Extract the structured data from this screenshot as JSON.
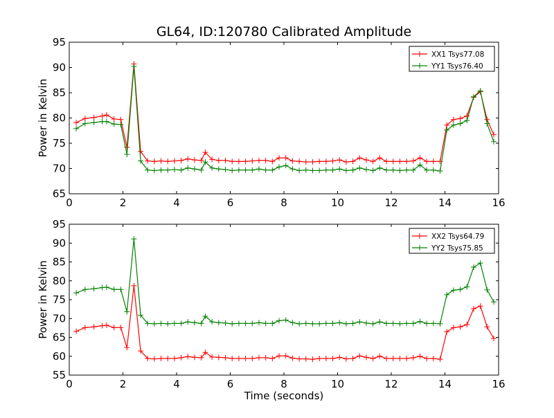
{
  "title": "GL64, ID:120780 Calibrated Amplitude",
  "chart_data": [
    {
      "type": "line",
      "ylabel": "Power in Kelvin",
      "xlabel": "",
      "xlim": [
        0,
        16
      ],
      "ylim": [
        65,
        95
      ],
      "xticks": [
        0,
        2,
        4,
        6,
        8,
        10,
        12,
        14,
        16
      ],
      "yticks": [
        65,
        70,
        75,
        80,
        85,
        90,
        95
      ],
      "legend_position": "top-right",
      "x": [
        0.26,
        0.59,
        0.92,
        1.23,
        1.39,
        1.67,
        1.92,
        2.15,
        2.41,
        2.66,
        2.92,
        3.17,
        3.42,
        3.67,
        3.92,
        4.17,
        4.42,
        4.67,
        4.92,
        5.07,
        5.32,
        5.57,
        5.82,
        6.07,
        6.32,
        6.57,
        6.82,
        7.07,
        7.32,
        7.57,
        7.82,
        8.07,
        8.32,
        8.57,
        8.82,
        9.07,
        9.32,
        9.57,
        9.82,
        10.07,
        10.32,
        10.57,
        10.82,
        11.07,
        11.32,
        11.57,
        11.82,
        12.07,
        12.32,
        12.57,
        12.82,
        13.07,
        13.32,
        13.57,
        13.82,
        14.07,
        14.32,
        14.57,
        14.82,
        15.07,
        15.32,
        15.57,
        15.82
      ],
      "series": [
        {
          "name": "XX1 Tsys77.08",
          "color": "#ff0000",
          "values": [
            79.1,
            79.9,
            80.1,
            80.4,
            80.6,
            79.8,
            79.7,
            74.2,
            90.7,
            73.4,
            71.5,
            71.4,
            71.5,
            71.4,
            71.5,
            71.6,
            71.9,
            71.7,
            71.6,
            73.2,
            71.8,
            71.6,
            71.6,
            71.4,
            71.4,
            71.4,
            71.5,
            71.6,
            71.6,
            71.4,
            72.1,
            72.1,
            71.5,
            71.4,
            71.3,
            71.3,
            71.4,
            71.4,
            71.5,
            71.7,
            71.3,
            71.4,
            72.1,
            71.7,
            71.4,
            72.1,
            71.4,
            71.4,
            71.4,
            71.4,
            71.5,
            72.1,
            71.4,
            71.4,
            71.4,
            78.6,
            79.7,
            79.9,
            80.4,
            84.1,
            85.2,
            79.7,
            76.7
          ]
        },
        {
          "name": "YY1 Tsys76.40",
          "color": "#008000",
          "values": [
            77.9,
            78.9,
            79.1,
            79.3,
            79.3,
            78.8,
            78.7,
            72.8,
            90.2,
            71.5,
            69.7,
            69.6,
            69.7,
            69.7,
            69.8,
            69.7,
            70.1,
            69.9,
            69.7,
            71.3,
            70.1,
            69.9,
            69.8,
            69.6,
            69.7,
            69.7,
            69.7,
            69.9,
            69.7,
            69.7,
            70.3,
            70.6,
            69.9,
            69.6,
            69.7,
            69.6,
            69.6,
            69.7,
            69.7,
            69.9,
            69.6,
            69.7,
            70.1,
            69.8,
            69.6,
            70.1,
            69.7,
            69.7,
            69.6,
            69.7,
            69.7,
            70.7,
            69.7,
            69.7,
            69.5,
            77.6,
            78.6,
            78.9,
            79.5,
            84.2,
            85.4,
            78.9,
            75.3
          ]
        }
      ]
    },
    {
      "type": "line",
      "ylabel": "Power in Kelvin",
      "xlabel": "Time (seconds)",
      "xlim": [
        0,
        16
      ],
      "ylim": [
        55,
        95
      ],
      "xticks": [
        0,
        2,
        4,
        6,
        8,
        10,
        12,
        14,
        16
      ],
      "yticks": [
        55,
        60,
        65,
        70,
        75,
        80,
        85,
        90,
        95
      ],
      "legend_position": "top-right",
      "x": [
        0.26,
        0.59,
        0.92,
        1.23,
        1.39,
        1.67,
        1.92,
        2.15,
        2.41,
        2.66,
        2.92,
        3.17,
        3.42,
        3.67,
        3.92,
        4.17,
        4.42,
        4.67,
        4.92,
        5.07,
        5.32,
        5.57,
        5.82,
        6.07,
        6.32,
        6.57,
        6.82,
        7.07,
        7.32,
        7.57,
        7.82,
        8.07,
        8.32,
        8.57,
        8.82,
        9.07,
        9.32,
        9.57,
        9.82,
        10.07,
        10.32,
        10.57,
        10.82,
        11.07,
        11.32,
        11.57,
        11.82,
        12.07,
        12.32,
        12.57,
        12.82,
        13.07,
        13.32,
        13.57,
        13.82,
        14.07,
        14.32,
        14.57,
        14.82,
        15.07,
        15.32,
        15.57,
        15.82
      ],
      "series": [
        {
          "name": "XX2 Tsys64.79",
          "color": "#ff0000",
          "values": [
            66.6,
            67.6,
            67.8,
            68.1,
            68.2,
            67.6,
            67.6,
            62.3,
            78.7,
            61.4,
            59.4,
            59.3,
            59.4,
            59.4,
            59.4,
            59.6,
            59.9,
            59.7,
            59.6,
            61.0,
            59.8,
            59.7,
            59.6,
            59.4,
            59.4,
            59.4,
            59.4,
            59.6,
            59.6,
            59.4,
            60.1,
            60.1,
            59.5,
            59.3,
            59.3,
            59.2,
            59.4,
            59.4,
            59.4,
            59.7,
            59.3,
            59.4,
            60.1,
            59.7,
            59.4,
            60.0,
            59.4,
            59.4,
            59.4,
            59.4,
            59.6,
            60.0,
            59.4,
            59.4,
            59.2,
            66.5,
            67.6,
            67.8,
            68.4,
            72.6,
            73.3,
            67.8,
            64.7
          ]
        },
        {
          "name": "YY2 Tsys75.85",
          "color": "#008000",
          "values": [
            76.8,
            77.7,
            77.9,
            78.2,
            78.3,
            77.7,
            77.7,
            71.8,
            91.1,
            70.9,
            68.7,
            68.6,
            68.7,
            68.6,
            68.7,
            68.7,
            69.1,
            68.9,
            68.7,
            70.6,
            69.1,
            68.9,
            68.8,
            68.6,
            68.7,
            68.7,
            68.7,
            68.9,
            68.7,
            68.7,
            69.4,
            69.6,
            68.9,
            68.6,
            68.7,
            68.6,
            68.6,
            68.7,
            68.7,
            68.9,
            68.6,
            68.7,
            69.1,
            68.8,
            68.6,
            69.1,
            68.7,
            68.7,
            68.6,
            68.7,
            68.7,
            69.2,
            68.7,
            68.7,
            68.6,
            76.3,
            77.5,
            77.7,
            78.4,
            83.6,
            84.7,
            77.6,
            74.4
          ]
        }
      ]
    }
  ]
}
